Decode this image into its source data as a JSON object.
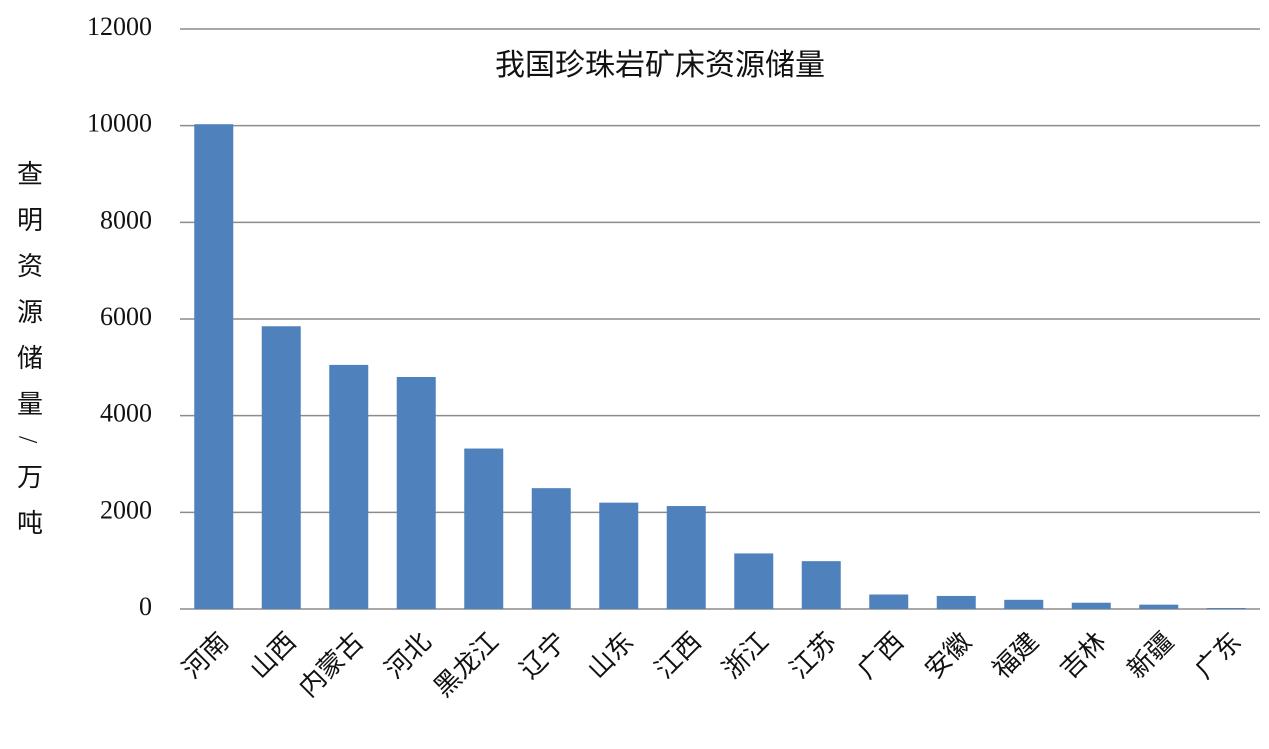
{
  "chart_data": {
    "type": "bar",
    "title": "我国珍珠岩矿床资源储量",
    "y_label": "查明资源储量/万吨",
    "categories": [
      "河南",
      "山西",
      "内蒙古",
      "河北",
      "黑龙江",
      "辽宁",
      "山东",
      "江西",
      "浙江",
      "江苏",
      "广西",
      "安徽",
      "福建",
      "吉林",
      "新疆",
      "广东"
    ],
    "values": [
      10030,
      5850,
      5050,
      4800,
      3320,
      2500,
      2200,
      2130,
      1150,
      990,
      300,
      270,
      190,
      130,
      90,
      20
    ],
    "color": "#4f81bd",
    "ylim": [
      0,
      12000
    ],
    "yticks": [
      0,
      2000,
      4000,
      6000,
      8000,
      10000,
      12000
    ],
    "grid": true
  }
}
